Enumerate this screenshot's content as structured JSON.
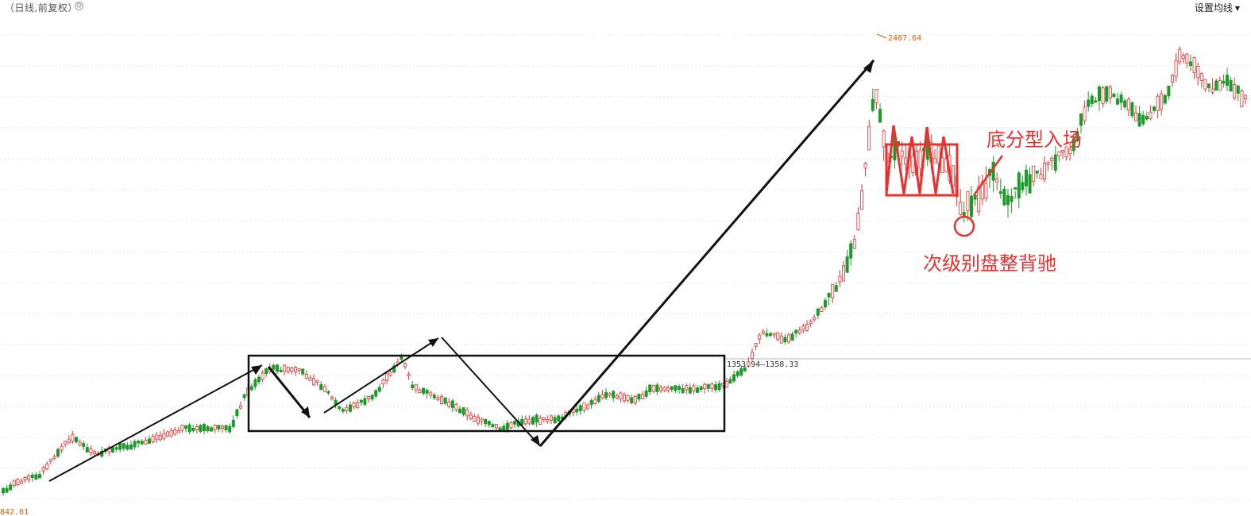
{
  "toolbar": {
    "period_label": "（日线,前复权）",
    "settings_icon": "gear-icon",
    "ma_settings_label": "设置均线"
  },
  "price_labels": {
    "high": "2407.64",
    "range": "1353.94—1358.33",
    "low": "842.61"
  },
  "annotations": {
    "entry_label": "底分型入场",
    "divergence_label": "次级别盘整背驰"
  },
  "colors": {
    "up": "#e8312f",
    "down": "#1e9a2b",
    "annotation": "#e8312f",
    "label": "#e05a00"
  },
  "chart_data": {
    "type": "candlestick",
    "title": "",
    "price_range": [
      842.61,
      2407.64
    ],
    "marked_high": 2407.64,
    "marked_low": 842.61,
    "reference_range": [
      1353.94,
      1358.33
    ],
    "grid": "horizontal",
    "series": []
  }
}
